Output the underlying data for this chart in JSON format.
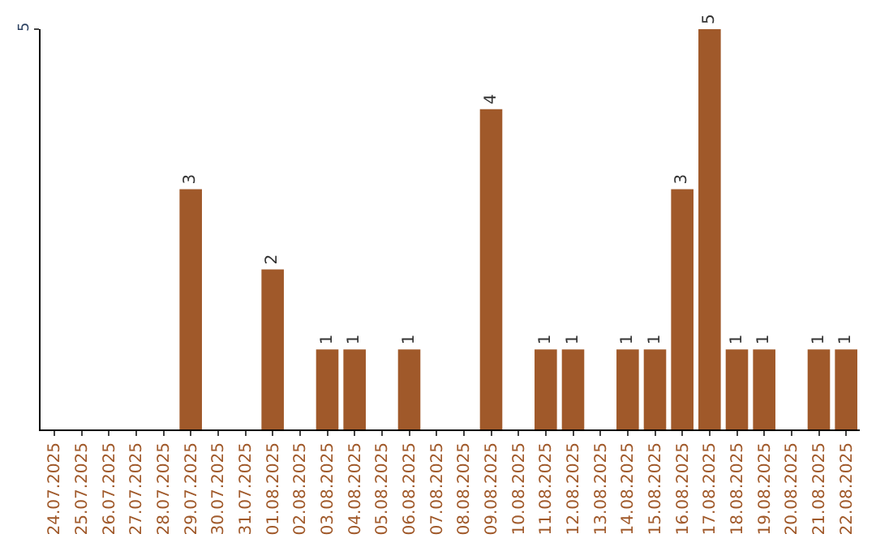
{
  "chart_data": {
    "type": "bar",
    "categories": [
      "24.07.2025",
      "25.07.2025",
      "26.07.2025",
      "27.07.2025",
      "28.07.2025",
      "29.07.2025",
      "30.07.2025",
      "31.07.2025",
      "01.08.2025",
      "02.08.2025",
      "03.08.2025",
      "04.08.2025",
      "05.08.2025",
      "06.08.2025",
      "07.08.2025",
      "08.08.2025",
      "09.08.2025",
      "10.08.2025",
      "11.08.2025",
      "12.08.2025",
      "13.08.2025",
      "14.08.2025",
      "15.08.2025",
      "16.08.2025",
      "17.08.2025",
      "18.08.2025",
      "19.08.2025",
      "20.08.2025",
      "21.08.2025",
      "22.08.2025"
    ],
    "values": [
      0,
      0,
      0,
      0,
      0,
      3,
      0,
      0,
      2,
      0,
      1,
      1,
      0,
      1,
      0,
      0,
      4,
      0,
      1,
      1,
      0,
      1,
      1,
      3,
      5,
      1,
      1,
      0,
      1,
      1
    ],
    "value_labels": [
      null,
      null,
      null,
      null,
      null,
      "3",
      null,
      null,
      "2",
      null,
      "1",
      "1",
      null,
      "1",
      null,
      null,
      "4",
      null,
      "1",
      "1",
      null,
      "1",
      "1",
      "3",
      "5",
      "1",
      "1",
      null,
      "1",
      "1"
    ],
    "color": "#a0592a",
    "ylim": [
      0,
      5
    ],
    "yticks": [
      5
    ],
    "legend": false
  }
}
